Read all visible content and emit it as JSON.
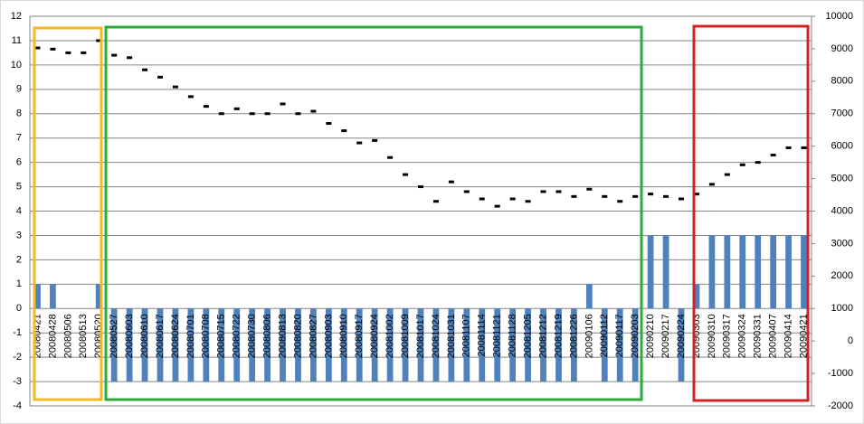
{
  "chart_data": {
    "type": "combo",
    "categories": [
      "20080421",
      "20080428",
      "20080506",
      "20080513",
      "20080520",
      "20080527",
      "20080603",
      "20080610",
      "20080617",
      "20080624",
      "20080701",
      "20080708",
      "20080715",
      "20080722",
      "20080730",
      "20080806",
      "20080813",
      "20080820",
      "20080827",
      "20080903",
      "20080910",
      "20080917",
      "20080924",
      "20081002",
      "20081009",
      "20081017",
      "20081024",
      "20081031",
      "20081107",
      "20081114",
      "20081121",
      "20081128",
      "20081205",
      "20081212",
      "20081219",
      "20081226",
      "20090106",
      "20090112",
      "20090117",
      "20090203",
      "20090210",
      "20090217",
      "20090224",
      "20090303",
      "20090310",
      "20090317",
      "20090324",
      "20090331",
      "20090407",
      "20090414",
      "20090421"
    ],
    "series": [
      {
        "type": "bar",
        "color": "#4f81bd",
        "values": [
          1,
          1,
          0,
          0,
          1,
          -3,
          -3,
          -3,
          -3,
          -3,
          -3,
          -3,
          -3,
          -3,
          -3,
          -3,
          -3,
          -3,
          -3,
          -3,
          -3,
          -3,
          -3,
          -3,
          -3,
          -3,
          -3,
          -3,
          -3,
          -3,
          -3,
          -3,
          -3,
          -3,
          -3,
          -3,
          1,
          -3,
          -3,
          -3,
          3,
          3,
          -3,
          1,
          3,
          3,
          3,
          3,
          3,
          3,
          3
        ]
      },
      {
        "type": "scatter",
        "axis": "y2",
        "color": "#000000",
        "values": [
          9025,
          8988,
          8875,
          8875,
          9250,
          8800,
          8725,
          8350,
          8125,
          7825,
          7525,
          7225,
          7000,
          7150,
          7000,
          7000,
          7300,
          7000,
          7075,
          6700,
          6475,
          6100,
          6175,
          5650,
          5125,
          4750,
          4300,
          4900,
          4600,
          4375,
          4150,
          4375,
          4300,
          4600,
          4600,
          4450,
          4675,
          4450,
          4300,
          4450,
          4525,
          4450,
          4375,
          4525,
          4825,
          5125,
          5425,
          5500,
          5725,
          5950,
          5950
        ]
      }
    ],
    "ylim": [
      -4,
      12
    ],
    "yticks": [
      -4,
      -3,
      -2,
      -1,
      0,
      1,
      2,
      3,
      4,
      5,
      6,
      7,
      8,
      9,
      10,
      11,
      12
    ],
    "y2lim": [
      -2000,
      10000
    ],
    "y2ticks": [
      -2000,
      -1000,
      0,
      1000,
      2000,
      3000,
      4000,
      5000,
      6000,
      7000,
      8000,
      9000,
      10000
    ],
    "grid": true
  }
}
